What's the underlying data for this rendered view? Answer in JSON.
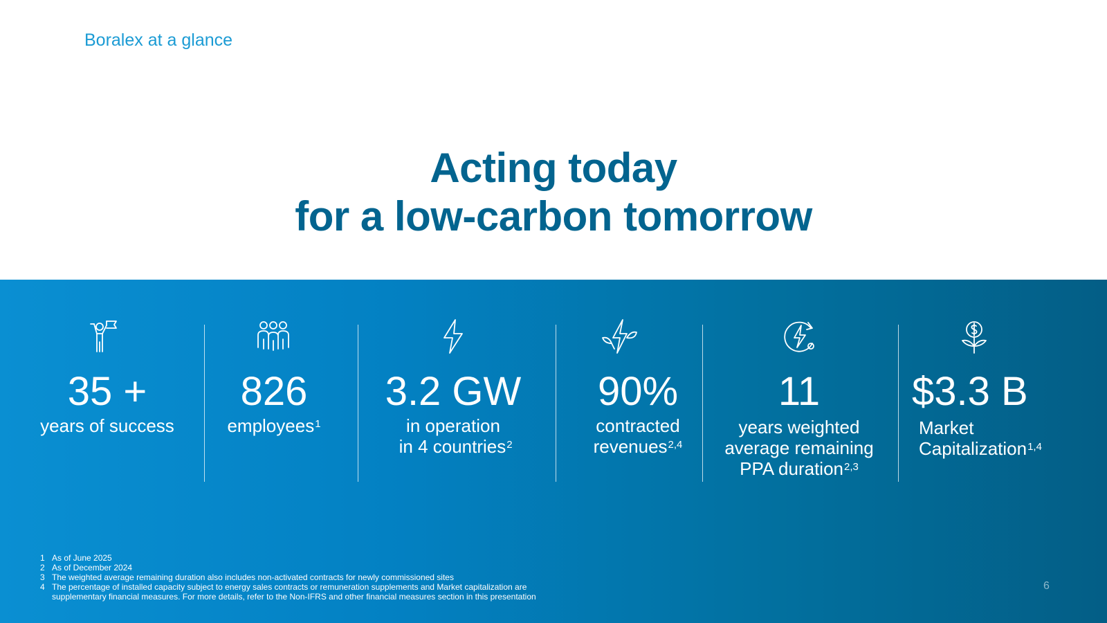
{
  "section_label": "Boralex at a glance",
  "headline": {
    "line1": "Acting today",
    "line2": "for a low-carbon tomorrow"
  },
  "stats": [
    {
      "icon": "person-flag-icon",
      "value": "35 +",
      "lines": [
        "years of success"
      ],
      "sups": [
        ""
      ]
    },
    {
      "icon": "group-people-icon",
      "value": "826",
      "lines": [
        "employees"
      ],
      "sups": [
        "1"
      ]
    },
    {
      "icon": "lightning-bolt-icon",
      "value": "3.2 GW",
      "lines": [
        "in operation",
        "in 4 countries"
      ],
      "sups": [
        "",
        "2"
      ]
    },
    {
      "icon": "bolt-leaf-icon",
      "value": "90%",
      "lines": [
        "contracted",
        "revenues"
      ],
      "sups": [
        "",
        "2,4"
      ]
    },
    {
      "icon": "bolt-cycle-icon",
      "value": "11",
      "lines": [
        "years weighted",
        "average remaining",
        "PPA duration"
      ],
      "sups": [
        "",
        "",
        "2,3"
      ]
    },
    {
      "icon": "dollar-plant-icon",
      "value": "$3.3 B",
      "lines": [
        "Market",
        "Capitalization"
      ],
      "sups": [
        "",
        "1,4"
      ]
    }
  ],
  "footnotes": [
    {
      "num": "1",
      "text": "As of June 2025"
    },
    {
      "num": "2",
      "text": "As of December 2024"
    },
    {
      "num": "3",
      "text": "The weighted average remaining duration also includes non-activated contracts for newly commissioned sites"
    },
    {
      "num": "4",
      "text": "The percentage of installed capacity subject to energy sales contracts or remuneration supplements and Market capitalization are"
    },
    {
      "num": "",
      "text": "supplementary financial measures. For more details, refer to the Non-IFRS and other financial measures section in this presentation"
    }
  ],
  "page_number": "6"
}
